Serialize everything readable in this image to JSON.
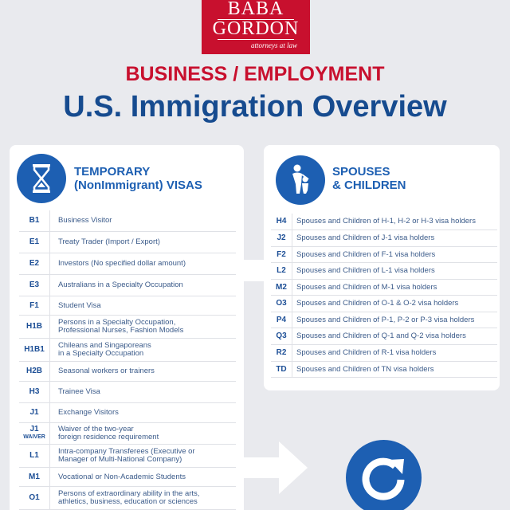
{
  "logo": {
    "line1": "BABA",
    "line2": "GORDON",
    "tagline": "attorneys at law"
  },
  "header": {
    "subtitle": "BUSINESS / EMPLOYMENT",
    "title": "U.S. Immigration Overview"
  },
  "temporary": {
    "title_line1": "TEMPORARY",
    "title_line2": "(NonImmigrant) VISAS",
    "icon": "hourglass-icon",
    "rows": [
      {
        "code": "B1",
        "desc": "Business Visitor"
      },
      {
        "code": "E1",
        "desc": "Treaty Trader (Import / Export)"
      },
      {
        "code": "E2",
        "desc": "Investors (No specified dollar amount)"
      },
      {
        "code": "E3",
        "desc": "Australians in a Specialty Occupation"
      },
      {
        "code": "F1",
        "desc": "Student Visa"
      },
      {
        "code": "H1B",
        "desc": "Persons in a Specialty Occupation,",
        "desc2": "Professional Nurses, Fashion Models"
      },
      {
        "code": "H1B1",
        "desc": "Chileans and Singaporeans",
        "desc2": "in a Specialty Occupation"
      },
      {
        "code": "H2B",
        "desc": "Seasonal workers or trainers"
      },
      {
        "code": "H3",
        "desc": "Trainee Visa"
      },
      {
        "code": "J1",
        "desc": "Exchange Visitors"
      },
      {
        "code": "J1",
        "code2": "WAIVER",
        "desc": "Waiver of the two-year",
        "desc2": "foreign residence requirement"
      },
      {
        "code": "L1",
        "desc": "Intra-company Transferees (Executive or",
        "desc2": "Manager of Multi-National Company)"
      },
      {
        "code": "M1",
        "desc": "Vocational or Non-Academic Students"
      },
      {
        "code": "O1",
        "desc": "Persons of extraordinary ability in the arts,",
        "desc2": "athletics, business, education or sciences"
      }
    ]
  },
  "spouses": {
    "title_line1": "SPOUSES",
    "title_line2": "& CHILDREN",
    "icon": "family-icon",
    "rows": [
      {
        "code": "H4",
        "desc": "Spouses and Children of H-1, H-2 or H-3  visa holders"
      },
      {
        "code": "J2",
        "desc": "Spouses and Children of J-1 visa holders"
      },
      {
        "code": "F2",
        "desc": "Spouses and Children of F-1 visa holders"
      },
      {
        "code": "L2",
        "desc": "Spouses and Children of L-1 visa holders"
      },
      {
        "code": "M2",
        "desc": "Spouses and Children of M-1 visa holders"
      },
      {
        "code": "O3",
        "desc": "Spouses and Children  of O-1 & O-2 visa holders"
      },
      {
        "code": "P4",
        "desc": "Spouses and Children of P-1, P-2 or P-3 visa holders"
      },
      {
        "code": "Q3",
        "desc": "Spouses and Children of Q-1 and Q-2 visa holders"
      },
      {
        "code": "R2",
        "desc": "Spouses and Children of R-1 visa holders"
      },
      {
        "code": "TD",
        "desc": "Spouses and Children of TN visa holders"
      }
    ]
  },
  "colors": {
    "brand_red": "#c8102e",
    "brand_blue": "#164b8f",
    "accent_blue": "#1d5fb2",
    "background": "#e9eaee"
  },
  "icons": {
    "arrow": "arrow-right-icon",
    "refresh": "refresh-icon"
  }
}
